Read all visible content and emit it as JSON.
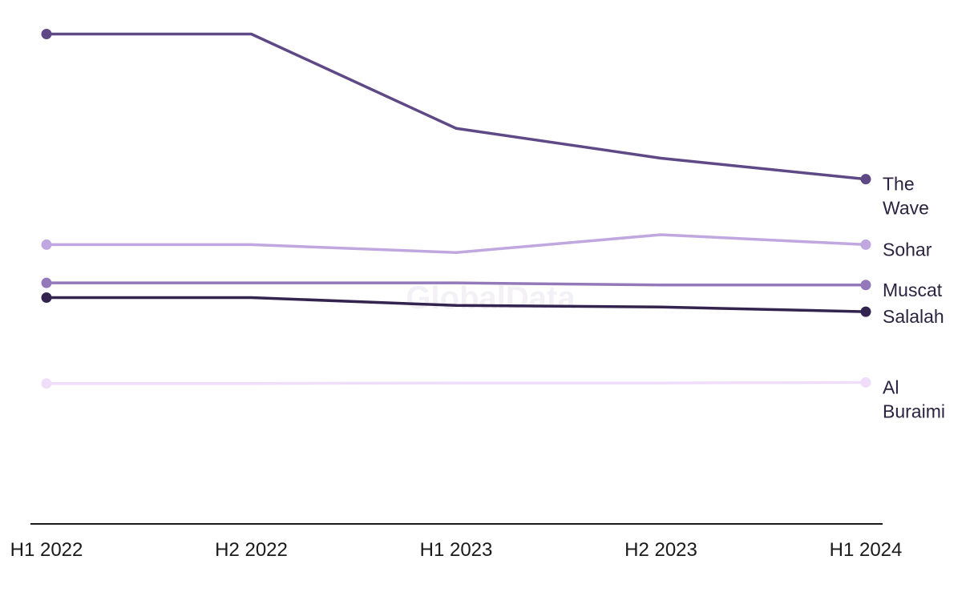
{
  "watermark": "GlobalData",
  "chart_data": {
    "type": "line",
    "categories": [
      "H1 2022",
      "H2 2022",
      "H1 2023",
      "H2 2023",
      "H1 2024"
    ],
    "ylim": [
      0,
      100
    ],
    "grid": false,
    "legend": "right-end labels",
    "series": [
      {
        "name": "The Wave",
        "label_lines": [
          "The",
          "Wave"
        ],
        "color": "#5e4886",
        "values": [
          93.5,
          93.5,
          75.5,
          69.8,
          65.8
        ]
      },
      {
        "name": "Sohar",
        "label_lines": [
          "Sohar"
        ],
        "color": "#c1a7e0",
        "values": [
          53.3,
          53.3,
          51.8,
          55.2,
          53.3
        ]
      },
      {
        "name": "Muscat",
        "label_lines": [
          "Muscat"
        ],
        "color": "#9379ba",
        "values": [
          46.0,
          46.0,
          46.0,
          45.6,
          45.6
        ]
      },
      {
        "name": "Salalah",
        "label_lines": [
          "Salalah"
        ],
        "color": "#33244f",
        "values": [
          43.2,
          43.2,
          41.7,
          41.4,
          40.5
        ]
      },
      {
        "name": "Al Buraimi",
        "label_lines": [
          "Al",
          "Buraimi"
        ],
        "color": "#f0ddfa",
        "values": [
          26.8,
          26.8,
          26.9,
          26.9,
          27.0
        ]
      }
    ]
  }
}
